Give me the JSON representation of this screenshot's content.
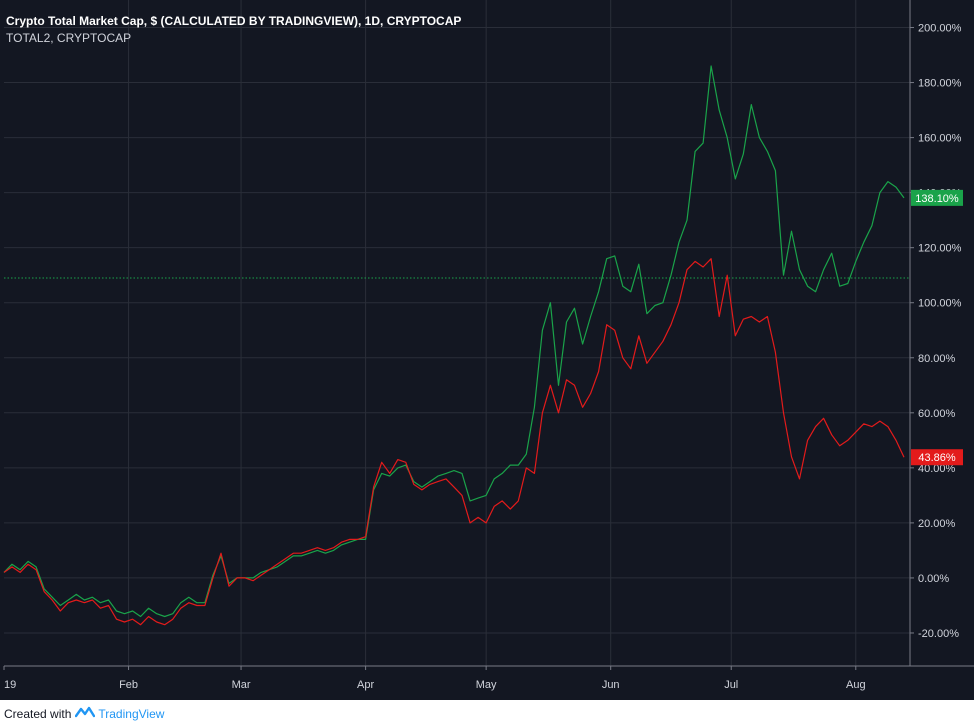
{
  "header": {
    "title": "Crypto Total Market Cap, $ (CALCULATED BY TRADINGVIEW), 1D, CRYPTOCAP",
    "subtitle": "TOTAL2, CRYPTOCAP"
  },
  "footer": {
    "created_with": "Created with",
    "brand": "TradingView"
  },
  "colors": {
    "background": "#131722",
    "grid": "#2a2e39",
    "axis_text": "#d1d4dc",
    "series_total": "#1aa34a",
    "series_total2": "#e31b1b",
    "baseline_dotted": "#1aa34a"
  },
  "chart_data": {
    "type": "line",
    "title": "Crypto Total Market Cap, $ (CALCULATED BY TRADINGVIEW), 1D, CRYPTOCAP",
    "x_ticks": [
      "19",
      "Feb",
      "Mar",
      "Apr",
      "May",
      "Jun",
      "Jul",
      "Aug"
    ],
    "x_tick_days": [
      0,
      31,
      59,
      90,
      120,
      151,
      181,
      212
    ],
    "x_range_days": [
      0,
      224
    ],
    "y_ticks": [
      "200.00%",
      "180.00%",
      "160.00%",
      "140.00%",
      "120.00%",
      "100.00%",
      "80.00%",
      "60.00%",
      "40.00%",
      "20.00%",
      "0.00%",
      "-20.00%"
    ],
    "y_tick_values": [
      200,
      180,
      160,
      140,
      120,
      100,
      80,
      60,
      40,
      20,
      0,
      -20
    ],
    "ylim": [
      -32,
      210
    ],
    "y_unit": "%",
    "reference_line": 109,
    "grid": true,
    "series": [
      {
        "name": "Crypto Total Market Cap",
        "color": "#1aa34a",
        "last_label": "138.10%",
        "last_value": 138.1,
        "points": [
          [
            0,
            2
          ],
          [
            2,
            5
          ],
          [
            4,
            3
          ],
          [
            6,
            6
          ],
          [
            8,
            4
          ],
          [
            10,
            -4
          ],
          [
            12,
            -7
          ],
          [
            14,
            -10
          ],
          [
            16,
            -8
          ],
          [
            18,
            -6
          ],
          [
            20,
            -8
          ],
          [
            22,
            -7
          ],
          [
            24,
            -9
          ],
          [
            26,
            -8
          ],
          [
            28,
            -12
          ],
          [
            30,
            -13
          ],
          [
            32,
            -12
          ],
          [
            34,
            -14
          ],
          [
            36,
            -11
          ],
          [
            38,
            -13
          ],
          [
            40,
            -14
          ],
          [
            42,
            -13
          ],
          [
            44,
            -9
          ],
          [
            46,
            -7
          ],
          [
            48,
            -9
          ],
          [
            50,
            -9
          ],
          [
            52,
            1
          ],
          [
            54,
            8
          ],
          [
            56,
            -2
          ],
          [
            58,
            0
          ],
          [
            60,
            0
          ],
          [
            62,
            0
          ],
          [
            64,
            2
          ],
          [
            66,
            3
          ],
          [
            68,
            4
          ],
          [
            70,
            6
          ],
          [
            72,
            8
          ],
          [
            74,
            8
          ],
          [
            76,
            9
          ],
          [
            78,
            10
          ],
          [
            80,
            9
          ],
          [
            82,
            10
          ],
          [
            84,
            12
          ],
          [
            86,
            13
          ],
          [
            88,
            14
          ],
          [
            90,
            14
          ],
          [
            92,
            32
          ],
          [
            94,
            38
          ],
          [
            96,
            37
          ],
          [
            98,
            40
          ],
          [
            100,
            41
          ],
          [
            102,
            35
          ],
          [
            104,
            33
          ],
          [
            106,
            35
          ],
          [
            108,
            37
          ],
          [
            110,
            38
          ],
          [
            112,
            39
          ],
          [
            114,
            38
          ],
          [
            116,
            28
          ],
          [
            118,
            29
          ],
          [
            120,
            30
          ],
          [
            122,
            36
          ],
          [
            124,
            38
          ],
          [
            126,
            41
          ],
          [
            128,
            41
          ],
          [
            130,
            45
          ],
          [
            132,
            62
          ],
          [
            134,
            90
          ],
          [
            136,
            100
          ],
          [
            138,
            70
          ],
          [
            140,
            93
          ],
          [
            142,
            98
          ],
          [
            144,
            85
          ],
          [
            146,
            95
          ],
          [
            148,
            104
          ],
          [
            150,
            116
          ],
          [
            152,
            117
          ],
          [
            154,
            106
          ],
          [
            156,
            104
          ],
          [
            158,
            114
          ],
          [
            160,
            96
          ],
          [
            162,
            99
          ],
          [
            164,
            100
          ],
          [
            166,
            110
          ],
          [
            168,
            122
          ],
          [
            170,
            130
          ],
          [
            172,
            155
          ],
          [
            174,
            158
          ],
          [
            176,
            186
          ],
          [
            178,
            170
          ],
          [
            180,
            160
          ],
          [
            182,
            145
          ],
          [
            184,
            154
          ],
          [
            186,
            172
          ],
          [
            188,
            160
          ],
          [
            190,
            155
          ],
          [
            192,
            148
          ],
          [
            194,
            110
          ],
          [
            196,
            126
          ],
          [
            198,
            112
          ],
          [
            200,
            106
          ],
          [
            202,
            104
          ],
          [
            204,
            112
          ],
          [
            206,
            118
          ],
          [
            208,
            106
          ],
          [
            210,
            107
          ],
          [
            212,
            115
          ],
          [
            214,
            122
          ],
          [
            216,
            128
          ],
          [
            218,
            140
          ],
          [
            220,
            144
          ],
          [
            222,
            142
          ],
          [
            224,
            138.1
          ]
        ]
      },
      {
        "name": "TOTAL2",
        "color": "#e31b1b",
        "last_label": "43.86%",
        "last_value": 43.86,
        "points": [
          [
            0,
            2
          ],
          [
            2,
            4
          ],
          [
            4,
            2
          ],
          [
            6,
            5
          ],
          [
            8,
            3
          ],
          [
            10,
            -5
          ],
          [
            12,
            -8
          ],
          [
            14,
            -12
          ],
          [
            16,
            -9
          ],
          [
            18,
            -8
          ],
          [
            20,
            -9
          ],
          [
            22,
            -8
          ],
          [
            24,
            -11
          ],
          [
            26,
            -10
          ],
          [
            28,
            -15
          ],
          [
            30,
            -16
          ],
          [
            32,
            -15
          ],
          [
            34,
            -17
          ],
          [
            36,
            -14
          ],
          [
            38,
            -16
          ],
          [
            40,
            -17
          ],
          [
            42,
            -15
          ],
          [
            44,
            -11
          ],
          [
            46,
            -9
          ],
          [
            48,
            -10
          ],
          [
            50,
            -10
          ],
          [
            52,
            0
          ],
          [
            54,
            9
          ],
          [
            56,
            -3
          ],
          [
            58,
            0
          ],
          [
            60,
            0
          ],
          [
            62,
            -1
          ],
          [
            64,
            1
          ],
          [
            66,
            3
          ],
          [
            68,
            5
          ],
          [
            70,
            7
          ],
          [
            72,
            9
          ],
          [
            74,
            9
          ],
          [
            76,
            10
          ],
          [
            78,
            11
          ],
          [
            80,
            10
          ],
          [
            82,
            11
          ],
          [
            84,
            13
          ],
          [
            86,
            14
          ],
          [
            88,
            14
          ],
          [
            90,
            15
          ],
          [
            92,
            33
          ],
          [
            94,
            42
          ],
          [
            96,
            38
          ],
          [
            98,
            43
          ],
          [
            100,
            42
          ],
          [
            102,
            34
          ],
          [
            104,
            32
          ],
          [
            106,
            34
          ],
          [
            108,
            35
          ],
          [
            110,
            36
          ],
          [
            112,
            33
          ],
          [
            114,
            30
          ],
          [
            116,
            20
          ],
          [
            118,
            22
          ],
          [
            120,
            20
          ],
          [
            122,
            26
          ],
          [
            124,
            28
          ],
          [
            126,
            25
          ],
          [
            128,
            28
          ],
          [
            130,
            40
          ],
          [
            132,
            38
          ],
          [
            134,
            60
          ],
          [
            136,
            70
          ],
          [
            138,
            60
          ],
          [
            140,
            72
          ],
          [
            142,
            70
          ],
          [
            144,
            62
          ],
          [
            146,
            67
          ],
          [
            148,
            75
          ],
          [
            150,
            92
          ],
          [
            152,
            90
          ],
          [
            154,
            80
          ],
          [
            156,
            76
          ],
          [
            158,
            88
          ],
          [
            160,
            78
          ],
          [
            162,
            82
          ],
          [
            164,
            86
          ],
          [
            166,
            92
          ],
          [
            168,
            100
          ],
          [
            170,
            112
          ],
          [
            172,
            115
          ],
          [
            174,
            113
          ],
          [
            176,
            116
          ],
          [
            178,
            95
          ],
          [
            180,
            110
          ],
          [
            182,
            88
          ],
          [
            184,
            94
          ],
          [
            186,
            95
          ],
          [
            188,
            93
          ],
          [
            190,
            95
          ],
          [
            192,
            82
          ],
          [
            194,
            60
          ],
          [
            196,
            44
          ],
          [
            198,
            36
          ],
          [
            200,
            50
          ],
          [
            202,
            55
          ],
          [
            204,
            58
          ],
          [
            206,
            52
          ],
          [
            208,
            48
          ],
          [
            210,
            50
          ],
          [
            212,
            53
          ],
          [
            214,
            56
          ],
          [
            216,
            55
          ],
          [
            218,
            57
          ],
          [
            220,
            55
          ],
          [
            222,
            50
          ],
          [
            224,
            43.86
          ]
        ]
      }
    ]
  }
}
